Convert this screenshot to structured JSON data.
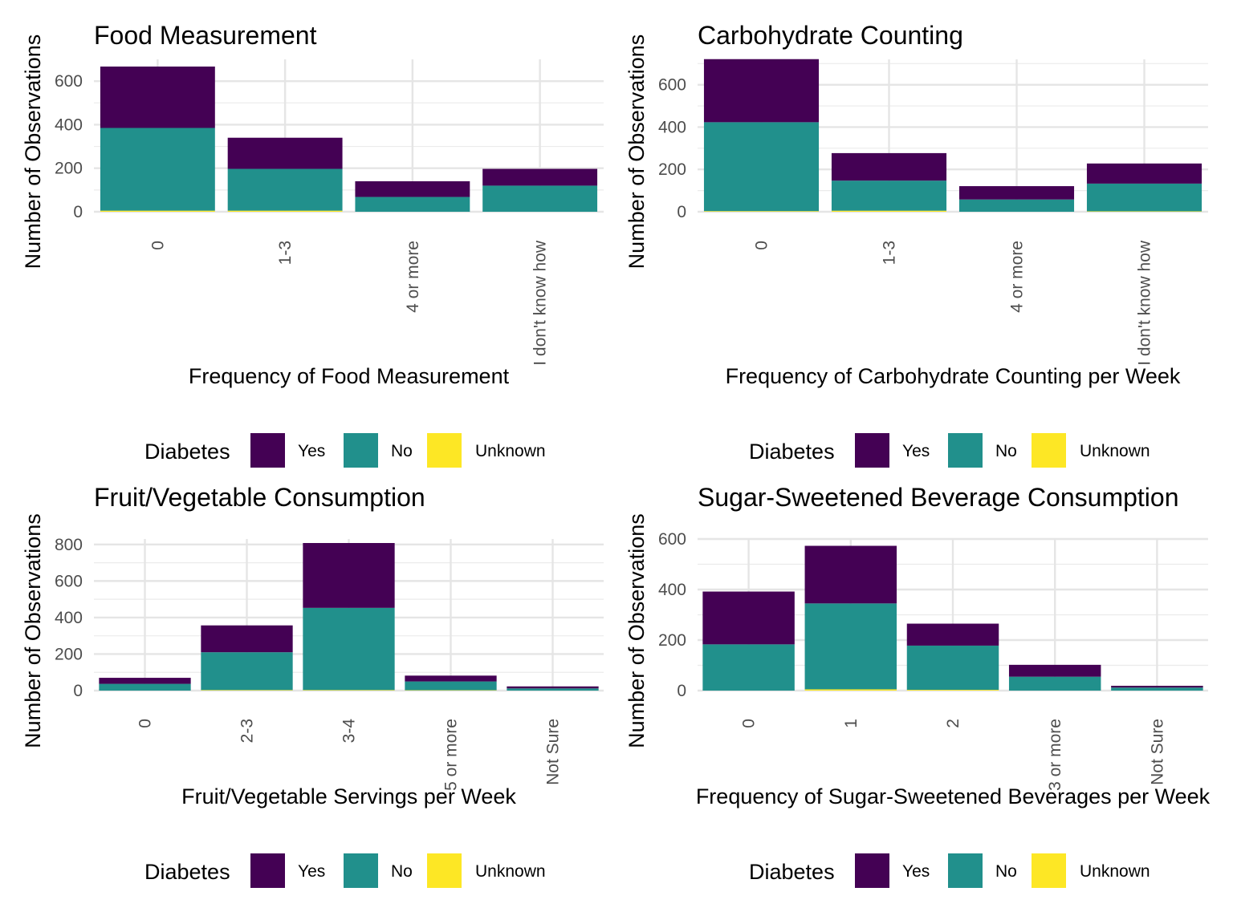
{
  "legend": {
    "title": "Diabetes",
    "items": [
      {
        "label": "Yes",
        "color": "#440154"
      },
      {
        "label": "No",
        "color": "#21908C"
      },
      {
        "label": "Unknown",
        "color": "#FDE725"
      }
    ]
  },
  "chart_data": [
    {
      "type": "bar",
      "title": "Food Measurement",
      "xlabel": "Frequency of Food Measurement",
      "ylabel": "Number of Observations",
      "categories": [
        "0",
        "1-3",
        "4 or more",
        "I don't know how"
      ],
      "series": [
        {
          "name": "Unknown",
          "values": [
            5,
            5,
            0,
            0
          ]
        },
        {
          "name": "No",
          "values": [
            380,
            192,
            68,
            120
          ]
        },
        {
          "name": "Yes",
          "values": [
            282,
            143,
            72,
            77
          ]
        }
      ],
      "ylim": [
        0,
        700
      ],
      "yticks": [
        0,
        200,
        400,
        600
      ],
      "stacked": true,
      "grid": true,
      "legend_position": "bottom"
    },
    {
      "type": "bar",
      "title": "Carbohydrate Counting",
      "xlabel": "Frequency of Carbohydrate Counting per Week",
      "ylabel": "Number of Observations",
      "categories": [
        "0",
        "1-3",
        "4 or more",
        "I don't know how"
      ],
      "series": [
        {
          "name": "Unknown",
          "values": [
            3,
            5,
            0,
            2
          ]
        },
        {
          "name": "No",
          "values": [
            420,
            142,
            58,
            131
          ]
        },
        {
          "name": "Yes",
          "values": [
            298,
            130,
            63,
            95
          ]
        }
      ],
      "ylim": [
        0,
        720
      ],
      "yticks": [
        0,
        200,
        400,
        600
      ],
      "stacked": true,
      "grid": true,
      "legend_position": "bottom"
    },
    {
      "type": "bar",
      "title": "Fruit/Vegetable Consumption",
      "xlabel": "Fruit/Vegetable Servings per Week",
      "ylabel": "Number of Observations",
      "categories": [
        "0",
        "2-3",
        "3-4",
        "5 or more",
        "Not Sure"
      ],
      "series": [
        {
          "name": "Unknown",
          "values": [
            0,
            3,
            3,
            2,
            0
          ]
        },
        {
          "name": "No",
          "values": [
            37,
            207,
            450,
            48,
            12
          ]
        },
        {
          "name": "Yes",
          "values": [
            33,
            147,
            355,
            32,
            11
          ]
        }
      ],
      "ylim": [
        0,
        830
      ],
      "yticks": [
        0,
        200,
        400,
        600,
        800
      ],
      "stacked": true,
      "grid": true,
      "legend_position": "bottom"
    },
    {
      "type": "bar",
      "title": "Sugar-Sweetened Beverage Consumption",
      "xlabel": "Frequency of Sugar-Sweetened Beverages per Week",
      "ylabel": "Number of Observations",
      "categories": [
        "0",
        "1",
        "2",
        "3 or more",
        "Not Sure"
      ],
      "series": [
        {
          "name": "Unknown",
          "values": [
            0,
            5,
            3,
            0,
            0
          ]
        },
        {
          "name": "No",
          "values": [
            183,
            340,
            175,
            55,
            12
          ]
        },
        {
          "name": "Yes",
          "values": [
            209,
            228,
            87,
            47,
            7
          ]
        }
      ],
      "ylim": [
        0,
        600
      ],
      "yticks": [
        0,
        200,
        400,
        600
      ],
      "stacked": true,
      "grid": true,
      "legend_position": "bottom"
    }
  ]
}
